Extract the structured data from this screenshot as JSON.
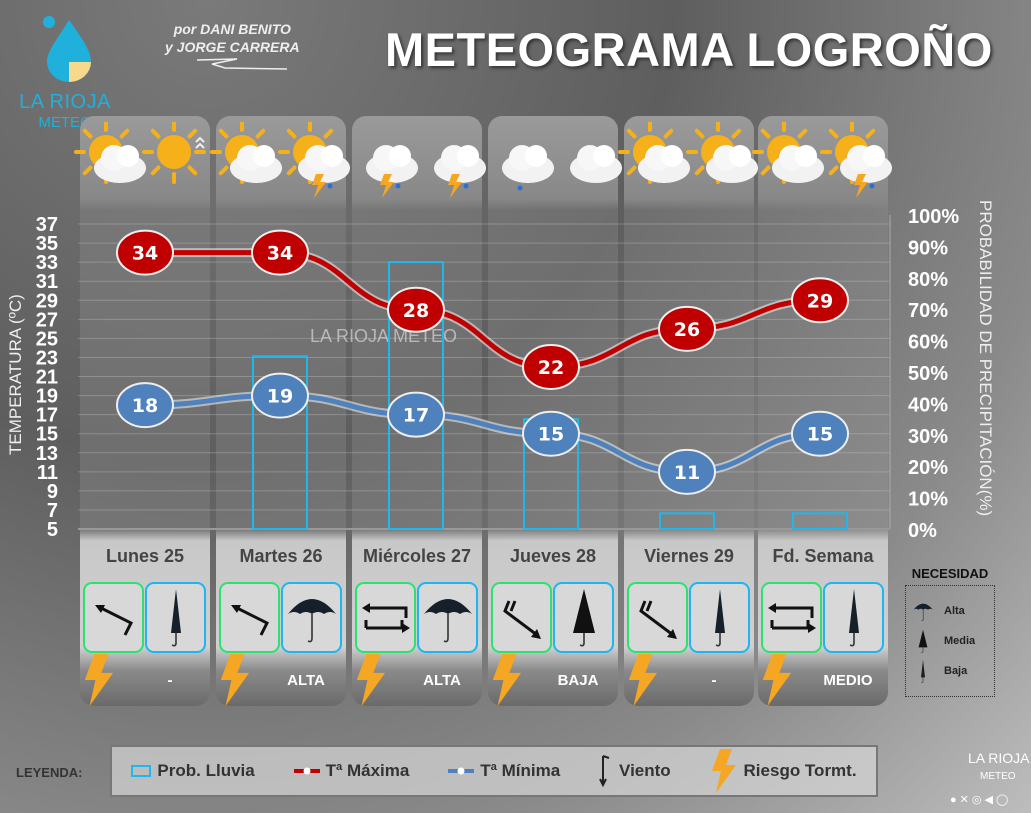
{
  "header": {
    "title": "METEOGRAMA LOGROÑO",
    "authors_line1": "por DANI BENITO",
    "authors_line2": "y JORGE CARRERA",
    "brand_name": "LA RIOJA",
    "brand_sub": "METEO"
  },
  "watermark": "LA RIOJA METEO",
  "colors": {
    "tmax": "#c00000",
    "tmin": "#4f81bd",
    "precip": "#1fb8ec",
    "bolt": "#f5a623",
    "wind_border": "#2ee070",
    "umbrella_border": "#22b4ec"
  },
  "days": [
    {
      "name": "Lunes 25",
      "icons": [
        "sun-cloud",
        "sun-haze"
      ],
      "wind": "northwest-arrow",
      "umbrella": "baja",
      "risk": "-"
    },
    {
      "name": "Martes 26",
      "icons": [
        "sun-cloud",
        "sun-cloud-storm"
      ],
      "wind": "northwest-arrow",
      "umbrella": "alta",
      "risk": "ALTA"
    },
    {
      "name": "Miércoles 27",
      "icons": [
        "cloud-storm",
        "cloud-storm"
      ],
      "wind": "variable-arrows",
      "umbrella": "alta",
      "risk": "ALTA"
    },
    {
      "name": "Jueves 28",
      "icons": [
        "cloud-rain",
        "cloud"
      ],
      "wind": "southeast-arrow",
      "umbrella": "media",
      "risk": "BAJA"
    },
    {
      "name": "Viernes 29",
      "icons": [
        "sun-cloud",
        "sun-cloud"
      ],
      "wind": "southeast-arrow",
      "umbrella": "baja",
      "risk": "-"
    },
    {
      "name": "Fd. Semana",
      "icons": [
        "sun-cloud",
        "sun-cloud-storm"
      ],
      "wind": "variable-arrows",
      "umbrella": "baja",
      "risk": "MEDIO"
    }
  ],
  "chart_data": {
    "type": "line+bar",
    "categories": [
      "Lunes 25",
      "Martes 26",
      "Miércoles 27",
      "Jueves 28",
      "Viernes 29",
      "Fd. Semana"
    ],
    "series": [
      {
        "name": "Tª Máxima",
        "axis": "left",
        "values": [
          34,
          34,
          28,
          22,
          26,
          29
        ]
      },
      {
        "name": "Tª Mínima",
        "axis": "left",
        "values": [
          18,
          19,
          17,
          15,
          11,
          15
        ]
      },
      {
        "name": "Prob. Lluvia",
        "axis": "right",
        "type": "bar",
        "values": [
          0,
          55,
          85,
          35,
          5,
          5
        ]
      }
    ],
    "ylabel": "TEMPERATURA (ºC)",
    "ylim": [
      5,
      37
    ],
    "yticks": [
      "5",
      "7",
      "9",
      "11",
      "13",
      "15",
      "17",
      "19",
      "21",
      "23",
      "25",
      "27",
      "29",
      "31",
      "33",
      "35",
      "37"
    ],
    "y2label": "PROBABILIDAD DE PRECIPITACIÓN(%)",
    "y2lim": [
      0,
      100
    ],
    "y2ticks": [
      "0%",
      "10%",
      "20%",
      "30%",
      "40%",
      "50%",
      "60%",
      "70%",
      "80%",
      "90%",
      "100%"
    ],
    "grid": true
  },
  "necesidad": {
    "title": "NECESIDAD",
    "items": [
      "Alta",
      "Media",
      "Baja"
    ]
  },
  "legend": {
    "label": "LEYENDA:",
    "items": [
      "Prob. Lluvia",
      "Tª Máxima",
      "Tª Mínima",
      "Viento",
      "Riesgo Tormt."
    ]
  },
  "footer": {
    "brand": "LA RIOJA",
    "sub": "METEO"
  }
}
